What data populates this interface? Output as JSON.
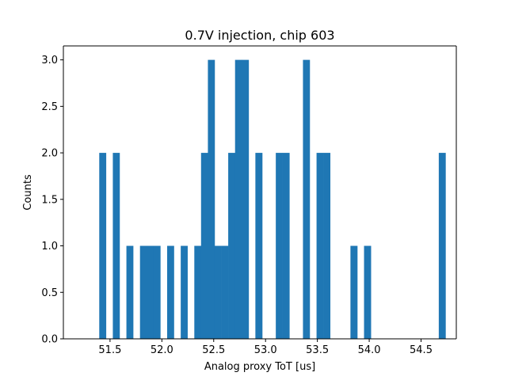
{
  "chart_data": {
    "type": "bar",
    "title": "0.7V injection, chip 603",
    "xlabel": "Analog proxy ToT [us]",
    "ylabel": "Counts",
    "xlim": [
      51.05,
      54.84
    ],
    "ylim": [
      0,
      3.15
    ],
    "x_ticks": [
      51.5,
      52.0,
      52.5,
      53.0,
      53.5,
      54.0,
      54.5
    ],
    "x_tick_labels": [
      "51.5",
      "52.0",
      "52.5",
      "53.0",
      "53.5",
      "54.0",
      "54.5"
    ],
    "y_ticks": [
      0.0,
      0.5,
      1.0,
      1.5,
      2.0,
      2.5,
      3.0
    ],
    "y_tick_labels": [
      "0.0",
      "0.5",
      "1.0",
      "1.5",
      "2.0",
      "2.5",
      "3.0"
    ],
    "grid": false,
    "bar_color": "#1f77b4",
    "bin_edges": [
      51.396,
      51.461,
      51.527,
      51.592,
      51.658,
      51.723,
      51.789,
      51.854,
      51.92,
      51.985,
      52.051,
      52.116,
      52.182,
      52.247,
      52.313,
      52.378,
      52.444,
      52.509,
      52.575,
      52.64,
      52.706,
      52.771,
      52.837,
      52.902,
      52.968,
      53.033,
      53.099,
      53.164,
      53.23,
      53.295,
      53.361,
      53.426,
      53.492,
      53.557,
      53.623,
      53.688,
      53.754,
      53.819,
      53.885,
      53.95,
      54.016,
      54.081,
      54.147,
      54.212,
      54.278,
      54.343,
      54.409,
      54.474,
      54.54,
      54.605,
      54.671,
      54.736
    ],
    "counts": [
      2,
      0,
      2,
      0,
      1,
      0,
      1,
      1,
      1,
      0,
      1,
      0,
      1,
      0,
      1,
      2,
      3,
      1,
      1,
      2,
      3,
      3,
      0,
      2,
      0,
      0,
      2,
      2,
      0,
      0,
      3,
      0,
      2,
      2,
      0,
      0,
      0,
      1,
      0,
      1,
      0,
      0,
      0,
      0,
      0,
      0,
      0,
      0,
      0,
      0,
      2
    ]
  }
}
